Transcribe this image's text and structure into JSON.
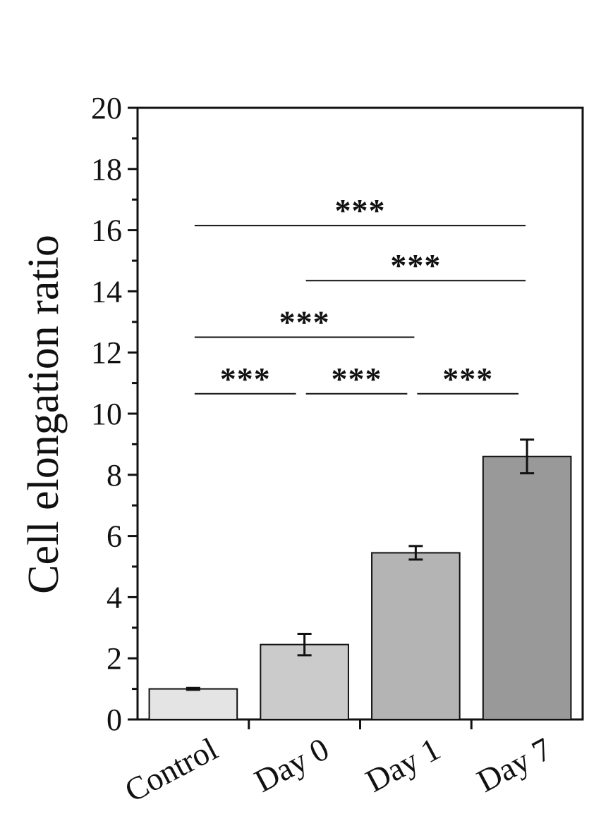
{
  "chart_data": {
    "type": "bar",
    "title": "",
    "xlabel": "",
    "ylabel": "Cell elongation ratio",
    "ylim": [
      0,
      20
    ],
    "yticks": [
      0,
      2,
      4,
      6,
      8,
      10,
      12,
      14,
      16,
      18,
      20
    ],
    "categories": [
      "Control",
      "Day 0",
      "Day 1",
      "Day 7"
    ],
    "values": [
      1.0,
      2.45,
      5.45,
      8.6
    ],
    "errors": [
      0.03,
      0.35,
      0.22,
      0.55
    ],
    "bar_colors": [
      "#e4e4e4",
      "#cbcbcb",
      "#b4b4b4",
      "#999999"
    ],
    "grid": false,
    "significance": [
      {
        "from": "Control",
        "to": "Day 7",
        "y": 16.15,
        "label": "***"
      },
      {
        "from": "Day 0",
        "to": "Day 7",
        "y": 14.35,
        "label": "***"
      },
      {
        "from": "Control",
        "to": "Day 1",
        "y": 12.5,
        "label": "***"
      },
      {
        "from": "Control",
        "to": "Day 0",
        "y": 10.65,
        "label": "***"
      },
      {
        "from": "Day 0",
        "to": "Day 1",
        "y": 10.65,
        "label": "***"
      },
      {
        "from": "Day 1",
        "to": "Day 7",
        "y": 10.65,
        "label": "***"
      }
    ]
  }
}
